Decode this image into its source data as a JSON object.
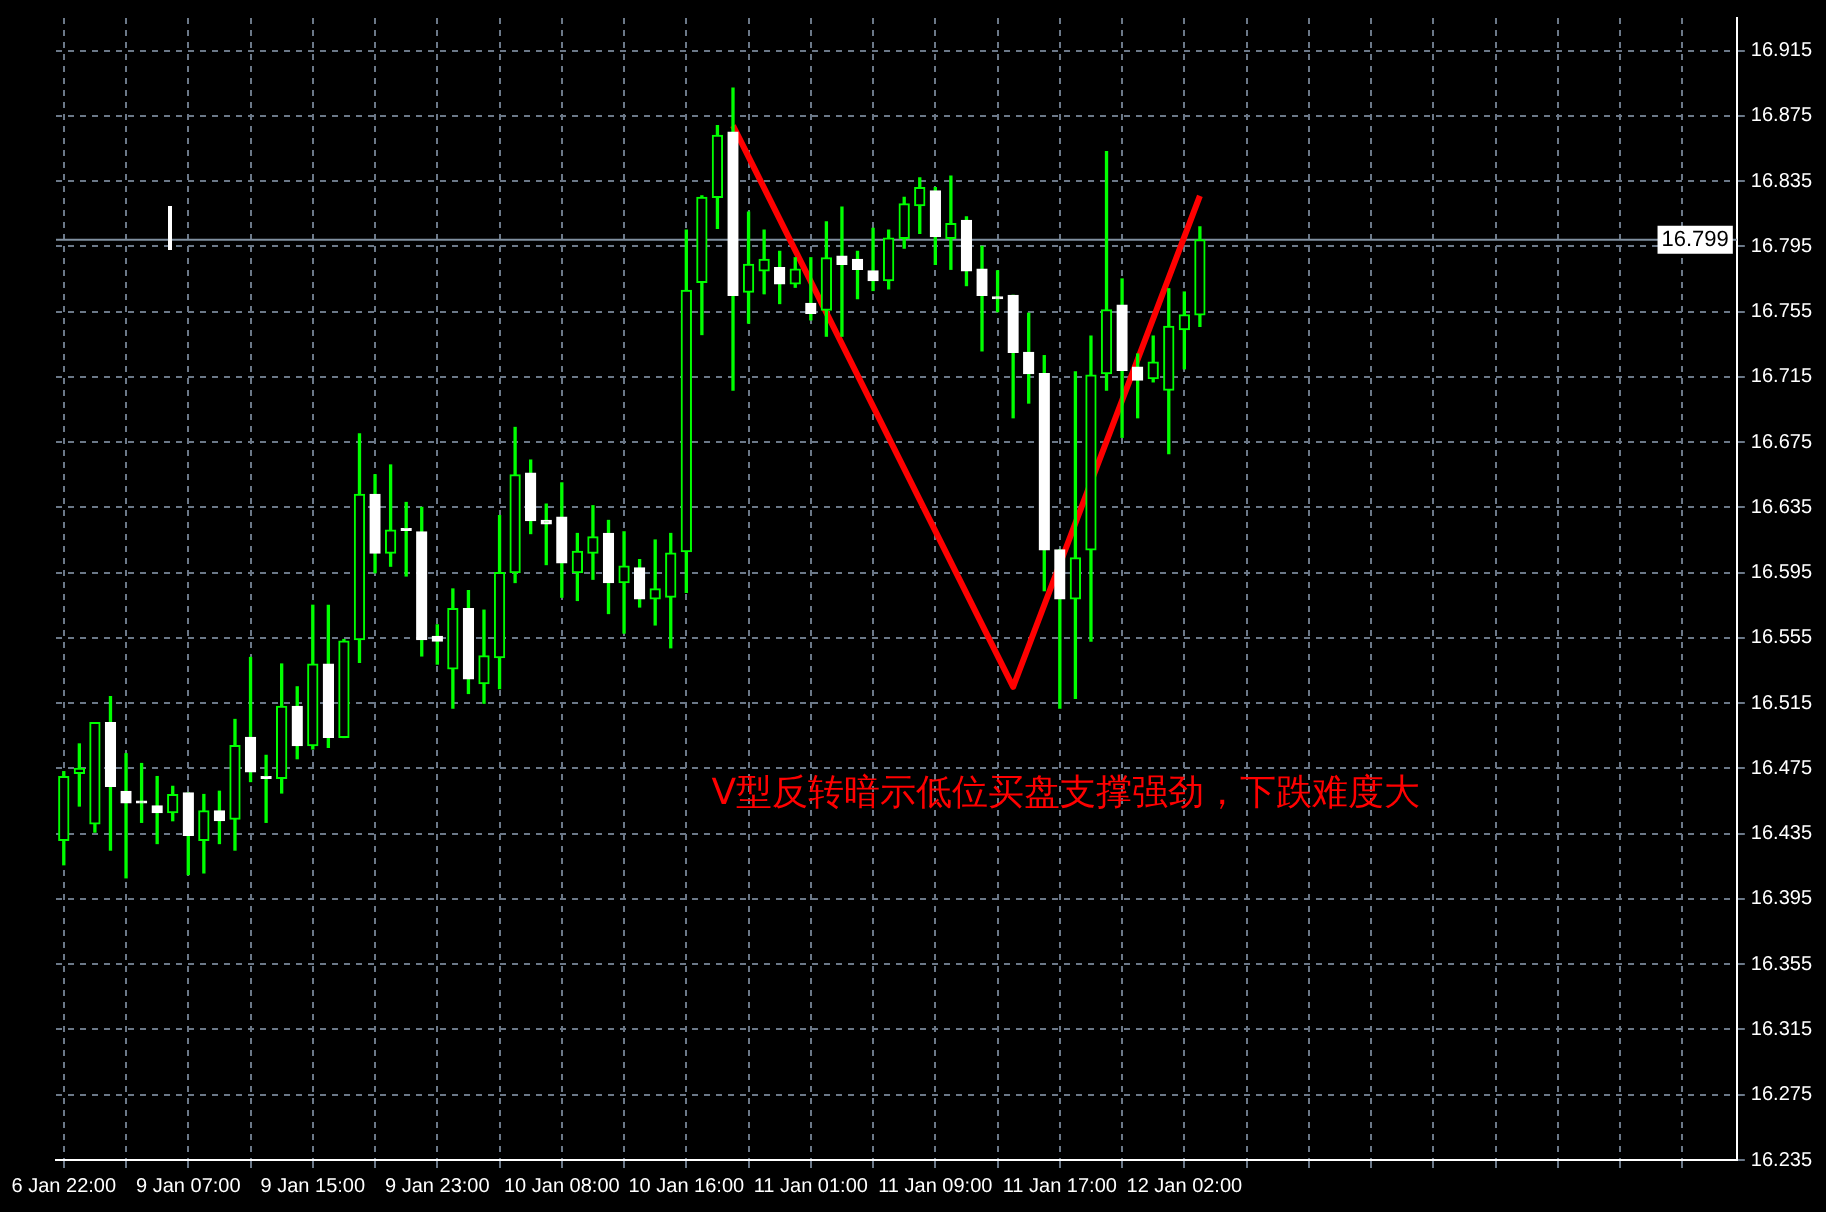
{
  "chart_data": {
    "type": "candlestick",
    "color": "#00ff00",
    "categories": [
      "6 Jan 22:00",
      null,
      null,
      null,
      null,
      null,
      null,
      null,
      "9 Jan 07:00",
      null,
      null,
      null,
      null,
      null,
      null,
      null,
      "9 Jan 15:00",
      null,
      null,
      null,
      null,
      null,
      null,
      null,
      "9 Jan 23:00",
      null,
      null,
      null,
      null,
      null,
      null,
      null,
      "10 Jan 08:00",
      null,
      null,
      null,
      null,
      null,
      null,
      null,
      "10 Jan 16:00",
      null,
      null,
      null,
      null,
      null,
      null,
      null,
      "11 Jan 01:00",
      null,
      null,
      null,
      null,
      null,
      null,
      null,
      "11 Jan 09:00",
      null,
      null,
      null,
      null,
      null,
      null,
      null,
      "11 Jan 17:00",
      null,
      null,
      null,
      null,
      null,
      null,
      null,
      "12 Jan 02:00",
      null,
      null,
      null,
      null,
      null,
      null,
      null,
      null,
      null,
      null,
      null,
      null,
      null,
      null,
      null,
      null,
      null,
      null,
      null,
      null,
      null,
      null,
      null,
      null,
      null,
      null,
      null,
      null,
      null,
      null,
      null,
      null,
      null,
      null,
      null
    ],
    "ohlc": [
      [
        16.431,
        16.473,
        16.416,
        16.47
      ],
      [
        16.472,
        16.49,
        16.452,
        16.475
      ],
      [
        16.441,
        16.503,
        16.436,
        16.503
      ],
      [
        16.503,
        16.519,
        16.425,
        16.464
      ],
      [
        16.461,
        16.484,
        16.408,
        16.454
      ],
      [
        16.455,
        16.478,
        16.442,
        16.454
      ],
      [
        16.452,
        16.47,
        16.429,
        16.448
      ],
      [
        16.448,
        16.464,
        16.443,
        16.459
      ],
      [
        16.46,
        16.46,
        16.41,
        16.434
      ],
      [
        16.431,
        16.459,
        16.411,
        16.449
      ],
      [
        16.449,
        16.461,
        16.429,
        16.443
      ],
      [
        16.444,
        16.505,
        16.425,
        16.489
      ],
      [
        16.494,
        16.543,
        16.467,
        16.473
      ],
      [
        16.47,
        16.483,
        16.442,
        16.469
      ],
      [
        16.469,
        16.539,
        16.46,
        16.513
      ],
      [
        16.513,
        16.525,
        16.481,
        16.489
      ],
      [
        16.489,
        16.575,
        16.487,
        16.539
      ],
      [
        16.539,
        16.575,
        16.488,
        16.494
      ],
      [
        16.494,
        16.554,
        16.494,
        16.553
      ],
      [
        16.554,
        16.68,
        16.54,
        16.643
      ],
      [
        16.643,
        16.655,
        16.595,
        16.607
      ],
      [
        16.607,
        16.661,
        16.599,
        16.621
      ],
      [
        16.622,
        16.638,
        16.593,
        16.621
      ],
      [
        16.62,
        16.635,
        16.544,
        16.554
      ],
      [
        16.556,
        16.563,
        16.539,
        16.553
      ],
      [
        16.536,
        16.585,
        16.512,
        16.573
      ],
      [
        16.573,
        16.584,
        16.521,
        16.53
      ],
      [
        16.527,
        16.572,
        16.515,
        16.544
      ],
      [
        16.543,
        16.63,
        16.524,
        16.595
      ],
      [
        16.595,
        16.684,
        16.589,
        16.655
      ],
      [
        16.656,
        16.664,
        16.619,
        16.627
      ],
      [
        16.627,
        16.637,
        16.6,
        16.625
      ],
      [
        16.629,
        16.65,
        16.58,
        16.601
      ],
      [
        16.595,
        16.619,
        16.578,
        16.608
      ],
      [
        16.607,
        16.636,
        16.591,
        16.617
      ],
      [
        16.619,
        16.627,
        16.57,
        16.589
      ],
      [
        16.589,
        16.62,
        16.558,
        16.599
      ],
      [
        16.598,
        16.603,
        16.574,
        16.579
      ],
      [
        16.579,
        16.615,
        16.563,
        16.585
      ],
      [
        16.58,
        16.619,
        16.549,
        16.607
      ],
      [
        16.608,
        16.805,
        16.583,
        16.768
      ],
      [
        16.773,
        16.826,
        16.741,
        16.825
      ],
      [
        16.825,
        16.869,
        16.806,
        16.863
      ],
      [
        16.865,
        16.892,
        16.707,
        16.765
      ],
      [
        16.767,
        16.816,
        16.748,
        16.784
      ],
      [
        16.78,
        16.805,
        16.766,
        16.787
      ],
      [
        16.782,
        16.792,
        16.76,
        16.772
      ],
      [
        16.772,
        16.788,
        16.77,
        16.781
      ],
      [
        16.76,
        16.788,
        16.75,
        16.754
      ],
      [
        16.756,
        16.81,
        16.74,
        16.788
      ],
      [
        16.789,
        16.819,
        16.74,
        16.784
      ],
      [
        16.787,
        16.792,
        16.763,
        16.781
      ],
      [
        16.78,
        16.806,
        16.768,
        16.774
      ],
      [
        16.774,
        16.805,
        16.769,
        16.8
      ],
      [
        16.8,
        16.825,
        16.794,
        16.821
      ],
      [
        16.82,
        16.837,
        16.803,
        16.831
      ],
      [
        16.829,
        16.831,
        16.784,
        16.801
      ],
      [
        16.8,
        16.838,
        16.781,
        16.809
      ],
      [
        16.811,
        16.813,
        16.771,
        16.78
      ],
      [
        16.781,
        16.795,
        16.731,
        16.765
      ],
      [
        16.764,
        16.78,
        16.755,
        16.763
      ],
      [
        16.765,
        16.765,
        16.69,
        16.73
      ],
      [
        16.73,
        16.754,
        16.699,
        16.717
      ],
      [
        16.717,
        16.728,
        16.584,
        16.609
      ],
      [
        16.609,
        16.609,
        16.512,
        16.579
      ],
      [
        16.579,
        16.718,
        16.518,
        16.604
      ],
      [
        16.609,
        16.74,
        16.553,
        16.716
      ],
      [
        16.717,
        16.853,
        16.707,
        16.756
      ],
      [
        16.759,
        16.775,
        16.678,
        16.719
      ],
      [
        16.721,
        16.729,
        16.69,
        16.713
      ],
      [
        16.714,
        16.74,
        16.712,
        16.724
      ],
      [
        16.707,
        16.769,
        16.668,
        16.746
      ],
      [
        16.744,
        16.767,
        16.72,
        16.753
      ],
      [
        16.753,
        16.807,
        16.746,
        16.799
      ],
      null,
      null,
      null,
      null,
      null,
      null,
      null,
      null,
      null,
      null,
      null,
      null,
      null,
      null,
      null,
      null,
      null,
      null,
      null,
      null,
      null,
      null,
      null,
      null,
      null,
      null,
      null,
      null,
      null,
      null,
      null,
      null,
      null,
      null
    ],
    "colors": [
      "#00ff00",
      "#00ff00",
      "#00ff00",
      "#ffffff",
      "#ffffff",
      "#ffffff",
      "#ffffff",
      "#00ff00",
      "#ffffff",
      "#00ff00",
      "#ffffff",
      "#00ff00",
      "#ffffff",
      "#ffffff",
      "#00ff00",
      "#ffffff",
      "#00ff00",
      "#ffffff",
      "#00ff00",
      "#00ff00",
      "#ffffff",
      "#00ff00",
      "#ffffff",
      "#ffffff",
      "#ffffff",
      "#00ff00",
      "#ffffff",
      "#00ff00",
      "#00ff00",
      "#00ff00",
      "#ffffff",
      "#ffffff",
      "#ffffff",
      "#00ff00",
      "#00ff00",
      "#ffffff",
      "#00ff00",
      "#ffffff",
      "#00ff00",
      "#00ff00",
      "#00ff00",
      "#00ff00",
      "#00ff00",
      "#ffffff",
      "#00ff00",
      "#00ff00",
      "#ffffff",
      "#00ff00",
      "#ffffff",
      "#00ff00",
      "#ffffff",
      "#ffffff",
      "#ffffff",
      "#00ff00",
      "#00ff00",
      "#00ff00",
      "#ffffff",
      "#00ff00",
      "#ffffff",
      "#ffffff",
      "#ffffff",
      "#ffffff",
      "#ffffff",
      "#ffffff",
      "#ffffff",
      "#00ff00",
      "#00ff00",
      "#00ff00",
      "#ffffff",
      "#ffffff",
      "#00ff00",
      "#00ff00",
      "#00ff00",
      "#00ff00",
      null,
      null,
      null,
      null,
      null,
      null,
      null,
      null,
      null,
      null,
      null,
      null,
      null,
      null,
      null,
      null,
      null,
      null,
      null,
      null,
      null,
      null,
      null,
      null,
      null,
      null,
      null,
      null,
      null,
      null,
      null,
      null,
      null,
      null
    ],
    "series": [
      {
        "type": "line",
        "color": "#ff0000",
        "values": [
          null,
          null,
          null,
          null,
          null,
          null,
          null,
          null,
          null,
          null,
          null,
          null,
          null,
          null,
          null,
          null,
          null,
          null,
          null,
          null,
          null,
          null,
          null,
          null,
          null,
          null,
          null,
          null,
          null,
          null,
          null,
          null,
          null,
          null,
          null,
          null,
          null,
          null,
          null,
          null,
          null,
          null,
          null,
          16.869,
          null,
          null,
          null,
          null,
          null,
          null,
          null,
          null,
          null,
          null,
          null,
          null,
          null,
          null,
          null,
          null,
          null,
          16.525,
          null,
          null,
          null,
          null,
          null,
          null,
          null,
          null,
          null,
          null,
          null,
          16.826,
          null,
          null,
          null,
          null,
          null,
          null,
          null,
          null,
          null,
          null,
          null,
          null,
          null,
          null,
          null,
          null,
          null,
          null,
          null,
          null,
          null,
          null,
          null,
          null,
          null,
          null,
          null,
          null,
          null,
          null,
          null,
          null,
          null,
          null
        ]
      }
    ],
    "ylim": [
      16.235,
      16.935
    ],
    "yticks": [
      16.235,
      16.275,
      16.315,
      16.355,
      16.395,
      16.435,
      16.475,
      16.515,
      16.555,
      16.595,
      16.635,
      16.675,
      16.715,
      16.755,
      16.795,
      16.835,
      16.875,
      16.915
    ],
    "ref_lines": [
      {
        "axis": "y",
        "value": 16.799,
        "label": "16.799",
        "color": "#8090a0"
      }
    ],
    "annotations": [
      "V型反转暗示低位买盘支撑强劲，下跌难度大"
    ],
    "grid": true,
    "legend": false
  }
}
